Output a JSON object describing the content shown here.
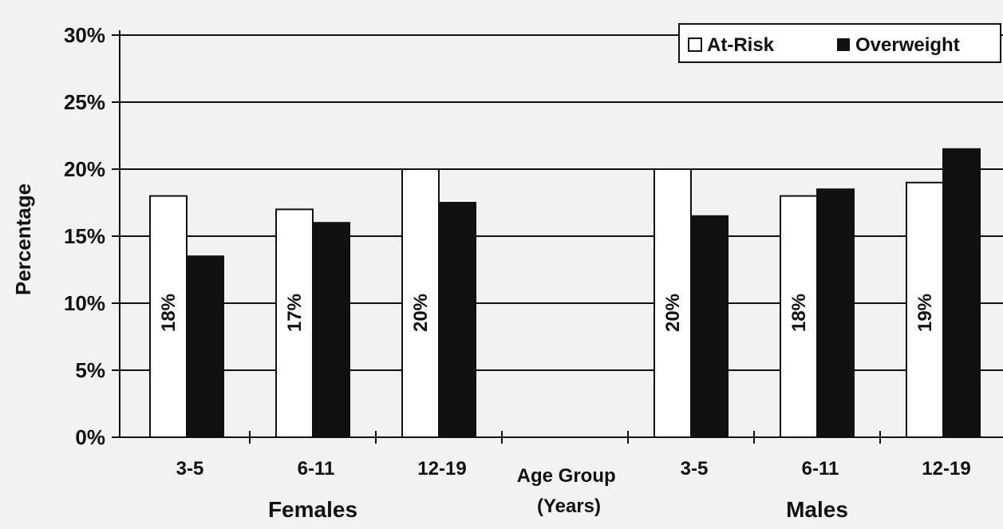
{
  "chart_data": {
    "type": "bar",
    "ylabel": "Percentage",
    "xlabel_lines": [
      "Age Group",
      "(Years)"
    ],
    "ylim": [
      0,
      30
    ],
    "yticks": [
      "0%",
      "5%",
      "10%",
      "15%",
      "20%",
      "25%",
      "30%"
    ],
    "groups": [
      {
        "name": "Females",
        "categories": [
          "3-5",
          "6-11",
          "12-19"
        ]
      },
      {
        "name": "Males",
        "categories": [
          "3-5",
          "6-11",
          "12-19"
        ]
      }
    ],
    "categories": [
      "3-5",
      "6-11",
      "12-19",
      "3-5",
      "6-11",
      "12-19"
    ],
    "series": [
      {
        "name": "At-Risk",
        "values": [
          18,
          17,
          20,
          20,
          18,
          19
        ],
        "labels": [
          "18%",
          "17%",
          "20%",
          "20%",
          "18%",
          "19%"
        ],
        "color": "#ffffff"
      },
      {
        "name": "Overweight",
        "values": [
          13.5,
          16,
          17.5,
          16.5,
          18.5,
          21.5
        ],
        "color": "#111111"
      }
    ],
    "grid": true,
    "legend": "top-right"
  },
  "colors": {
    "background": "#f2f2f2",
    "ink": "#111111"
  }
}
